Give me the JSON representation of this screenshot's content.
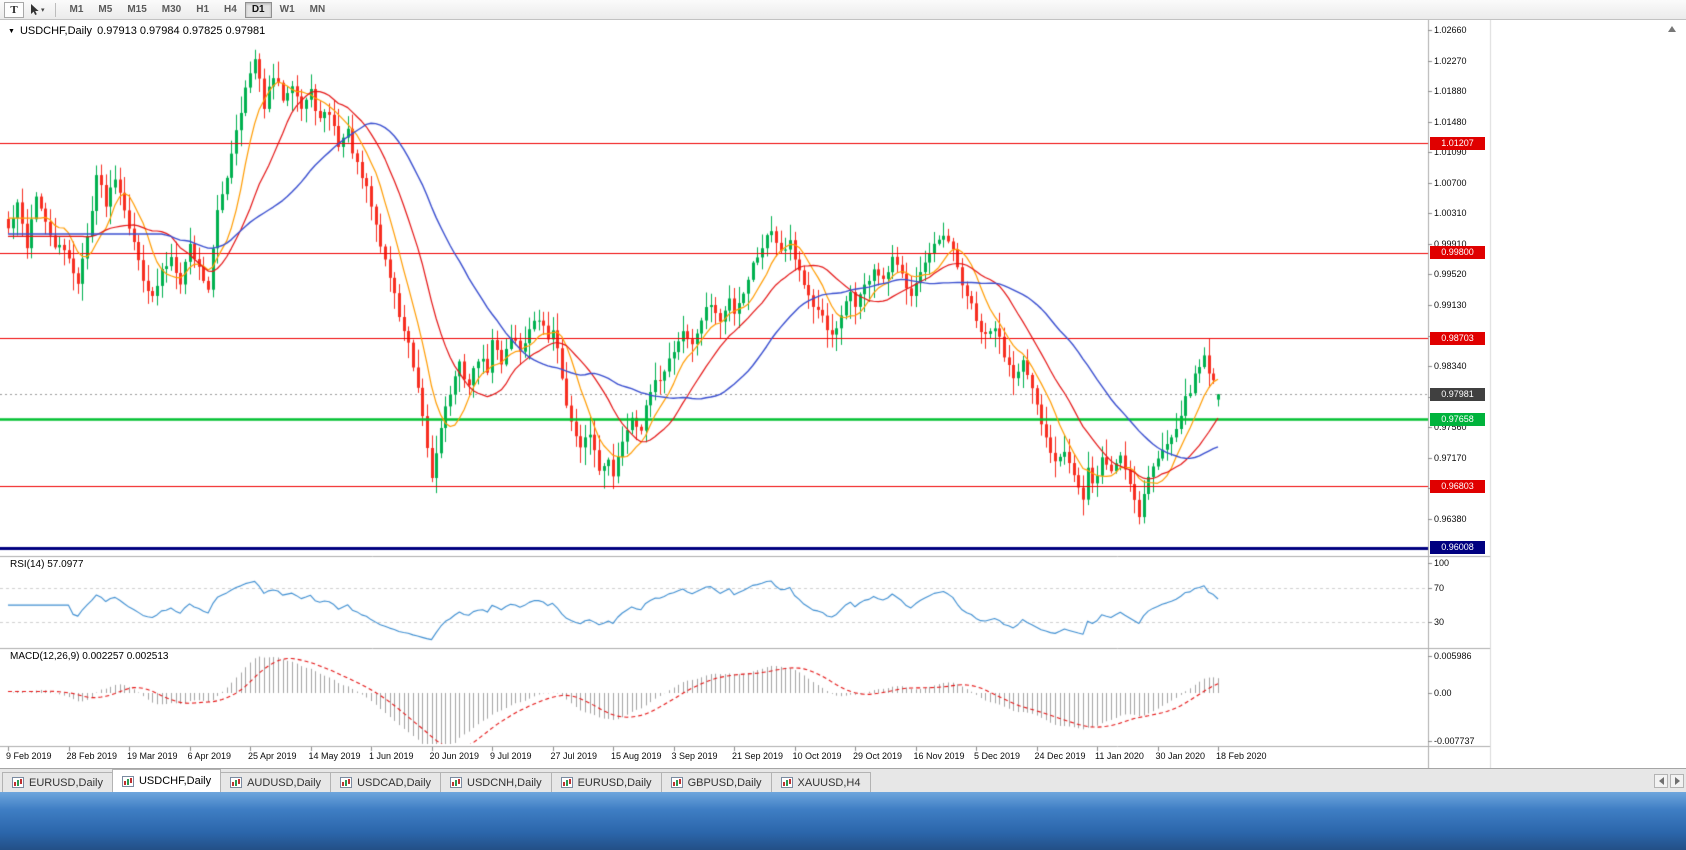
{
  "toolbar": {
    "tool_button": "T",
    "cursor_caret": "▾",
    "timeframes": [
      {
        "label": "M1",
        "active": false
      },
      {
        "label": "M5",
        "active": false
      },
      {
        "label": "M15",
        "active": false
      },
      {
        "label": "M30",
        "active": false
      },
      {
        "label": "H1",
        "active": false
      },
      {
        "label": "H4",
        "active": false
      },
      {
        "label": "D1",
        "active": true
      },
      {
        "label": "W1",
        "active": false
      },
      {
        "label": "MN",
        "active": false
      }
    ]
  },
  "chart": {
    "title_symbol": "USDCHF,Daily",
    "title_ohlc": "0.97913 0.97984 0.97825 0.97981",
    "rsi_label": "RSI(14)",
    "rsi_value": "57.0977",
    "macd_label": "MACD(12,26,9)",
    "macd_values": "0.002257 0.002513"
  },
  "chart_data": {
    "type": "candlestick",
    "symbol": "USDCHF",
    "period": "Daily",
    "candle_count": 261,
    "last_candle": {
      "open": 0.97913,
      "high": 0.97984,
      "low": 0.97825,
      "close": 0.97981
    },
    "close_anchors": [
      [
        0,
        1.001
      ],
      [
        2,
        1.004
      ],
      [
        4,
        0.999
      ],
      [
        6,
        1.0055
      ],
      [
        8,
        1.0015
      ],
      [
        10,
        0.999
      ],
      [
        13,
        0.9975
      ],
      [
        15,
        0.994
      ],
      [
        17,
        1.0
      ],
      [
        19,
        1.008
      ],
      [
        21,
        1.0045
      ],
      [
        23,
        1.008
      ],
      [
        25,
        1.004
      ],
      [
        27,
        0.999
      ],
      [
        29,
        0.995
      ],
      [
        31,
        0.992
      ],
      [
        33,
        0.9955
      ],
      [
        35,
        0.9975
      ],
      [
        37,
        0.9945
      ],
      [
        39,
        0.999
      ],
      [
        41,
        0.996
      ],
      [
        43,
        0.9935
      ],
      [
        45,
        1.003
      ],
      [
        47,
        1.008
      ],
      [
        49,
        1.014
      ],
      [
        51,
        1.019
      ],
      [
        53,
        1.0226
      ],
      [
        55,
        1.017
      ],
      [
        57,
        1.0205
      ],
      [
        59,
        1.018
      ],
      [
        61,
        1.02
      ],
      [
        63,
        1.0165
      ],
      [
        65,
        1.0185
      ],
      [
        67,
        1.015
      ],
      [
        69,
        1.016
      ],
      [
        71,
        1.012
      ],
      [
        73,
        1.0135
      ],
      [
        75,
        1.009
      ],
      [
        77,
        1.006
      ],
      [
        78,
        1.004
      ],
      [
        80,
        0.999
      ],
      [
        82,
        0.995
      ],
      [
        84,
        0.99
      ],
      [
        86,
        0.986
      ],
      [
        88,
        0.98
      ],
      [
        90,
        0.973
      ],
      [
        91,
        0.969
      ],
      [
        93,
        0.976
      ],
      [
        95,
        0.98
      ],
      [
        97,
        0.9835
      ],
      [
        99,
        0.981
      ],
      [
        101,
        0.9845
      ],
      [
        103,
        0.983
      ],
      [
        104,
        0.9865
      ],
      [
        106,
        0.984
      ],
      [
        108,
        0.9875
      ],
      [
        110,
        0.9855
      ],
      [
        112,
        0.988
      ],
      [
        114,
        0.9895
      ],
      [
        116,
        0.987
      ],
      [
        117,
        0.9885
      ],
      [
        119,
        0.982
      ],
      [
        121,
        0.976
      ],
      [
        123,
        0.9725
      ],
      [
        125,
        0.975
      ],
      [
        127,
        0.97
      ],
      [
        129,
        0.972
      ],
      [
        130,
        0.969
      ],
      [
        132,
        0.974
      ],
      [
        134,
        0.977
      ],
      [
        136,
        0.9755
      ],
      [
        138,
        0.98
      ],
      [
        140,
        0.982
      ],
      [
        143,
        0.9855
      ],
      [
        145,
        0.988
      ],
      [
        147,
        0.986
      ],
      [
        149,
        0.9895
      ],
      [
        151,
        0.9915
      ],
      [
        153,
        0.989
      ],
      [
        155,
        0.992
      ],
      [
        156,
        0.9905
      ],
      [
        158,
        0.993
      ],
      [
        160,
        0.9965
      ],
      [
        162,
        0.999
      ],
      [
        164,
        1.001
      ],
      [
        166,
        0.9985
      ],
      [
        168,
        0.9995
      ],
      [
        169,
        0.9975
      ],
      [
        171,
        0.994
      ],
      [
        173,
        0.9905
      ],
      [
        175,
        0.99
      ],
      [
        177,
        0.987
      ],
      [
        179,
        0.9895
      ],
      [
        181,
        0.993
      ],
      [
        182,
        0.9915
      ],
      [
        184,
        0.9935
      ],
      [
        186,
        0.996
      ],
      [
        188,
        0.994
      ],
      [
        190,
        0.997
      ],
      [
        192,
        0.995
      ],
      [
        194,
        0.993
      ],
      [
        195,
        0.9945
      ],
      [
        197,
        0.9965
      ],
      [
        199,
        0.9985
      ],
      [
        201,
        1.0
      ],
      [
        203,
        0.998
      ],
      [
        205,
        0.994
      ],
      [
        207,
        0.991
      ],
      [
        208,
        0.989
      ],
      [
        210,
        0.987
      ],
      [
        212,
        0.9885
      ],
      [
        214,
        0.985
      ],
      [
        216,
        0.9825
      ],
      [
        218,
        0.984
      ],
      [
        220,
        0.98
      ],
      [
        221,
        0.978
      ],
      [
        223,
        0.974
      ],
      [
        225,
        0.9715
      ],
      [
        227,
        0.973
      ],
      [
        229,
        0.9695
      ],
      [
        231,
        0.966
      ],
      [
        232,
        0.97
      ],
      [
        233,
        0.968
      ],
      [
        235,
        0.9715
      ],
      [
        237,
        0.97
      ],
      [
        239,
        0.972
      ],
      [
        241,
        0.9685
      ],
      [
        243,
        0.9645
      ],
      [
        245,
        0.9695
      ],
      [
        247,
        0.9715
      ],
      [
        249,
        0.9735
      ],
      [
        251,
        0.976
      ],
      [
        253,
        0.979
      ],
      [
        255,
        0.982
      ],
      [
        257,
        0.9848
      ],
      [
        258,
        0.983
      ],
      [
        259,
        0.9812
      ],
      [
        260,
        0.97981
      ]
    ],
    "y_axis": {
      "top_value": 1.0266,
      "step_value": 0.003925,
      "labels": [
        "1.02660",
        "1.02270",
        "1.01880",
        "1.01480",
        "1.01090",
        "1.00700",
        "1.00310",
        "0.99910",
        "0.99520",
        "0.99130",
        "0.98740",
        "0.98340",
        "0.97950",
        "0.97560",
        "0.97170",
        "0.96780",
        "0.96380"
      ]
    },
    "x_axis": {
      "candles_per_label": 13,
      "labels": [
        "9 Feb 2019",
        "28 Feb 2019",
        "19 Mar 2019",
        "6 Apr 2019",
        "25 Apr 2019",
        "14 May 2019",
        "1 Jun 2019",
        "20 Jun 2019",
        "9 Jul 2019",
        "27 Jul 2019",
        "15 Aug 2019",
        "3 Sep 2019",
        "21 Sep 2019",
        "10 Oct 2019",
        "29 Oct 2019",
        "16 Nov 2019",
        "5 Dec 2019",
        "24 Dec 2019",
        "11 Jan 2020",
        "30 Jan 2020",
        "18 Feb 2020"
      ]
    },
    "levels": [
      {
        "price": 1.01207,
        "label": "1.01207",
        "color": "#f00000",
        "width": 1.2
      },
      {
        "price": 0.998,
        "label": "0.99800",
        "color": "#f00000",
        "width": 1.2
      },
      {
        "price": 0.98703,
        "label": "0.98703",
        "color": "#f00000",
        "width": 1.2
      },
      {
        "price": 0.96803,
        "label": "0.96803",
        "color": "#f00000",
        "width": 1.2
      },
      {
        "price": 0.97658,
        "label": "0.97658",
        "color": "#00c030",
        "width": 2.4
      },
      {
        "price": 0.96008,
        "label": "0.96008",
        "color": "#000080",
        "width": 3
      }
    ],
    "current_price": {
      "value": 0.97981,
      "label": "0.97981",
      "color": "#404040"
    },
    "moving_averages": [
      {
        "period": 8,
        "color": "#ff9c00"
      },
      {
        "period": 17,
        "color": "#e51515"
      },
      {
        "period": 34,
        "color": "#3a4fd0"
      }
    ],
    "rsi": {
      "period": 14,
      "current": 57.0977,
      "color": "#3f8fd2",
      "levels": [
        70,
        30
      ],
      "scale_labels": [
        {
          "text": "100",
          "value": 100
        },
        {
          "text": "70",
          "value": 70
        },
        {
          "text": "30",
          "value": 30
        }
      ]
    },
    "macd": {
      "fast": 12,
      "slow": 26,
      "signal": 9,
      "current_macd": 0.002257,
      "current_signal": 0.002513,
      "bar_color": "#a4a4a4",
      "signal_color": "#e51515",
      "scale_labels": [
        {
          "text": "0.005986",
          "value": 0.005986
        },
        {
          "text": "0.00",
          "value": 0
        },
        {
          "text": "-0.007737",
          "value": -0.007737
        }
      ]
    }
  },
  "colors": {
    "bull": "#00b14f",
    "bear": "#f72e21",
    "background": "#ffffff",
    "separator": "#adadad",
    "current_line": "#9a9a9a"
  },
  "tabs": [
    {
      "label": "EURUSD,Daily",
      "active": false
    },
    {
      "label": "USDCHF,Daily",
      "active": true
    },
    {
      "label": "AUDUSD,Daily",
      "active": false
    },
    {
      "label": "USDCAD,Daily",
      "active": false
    },
    {
      "label": "USDCNH,Daily",
      "active": false
    },
    {
      "label": "EURUSD,Daily",
      "active": false
    },
    {
      "label": "GBPUSD,Daily",
      "active": false
    },
    {
      "label": "XAUUSD,H4",
      "active": false
    }
  ]
}
